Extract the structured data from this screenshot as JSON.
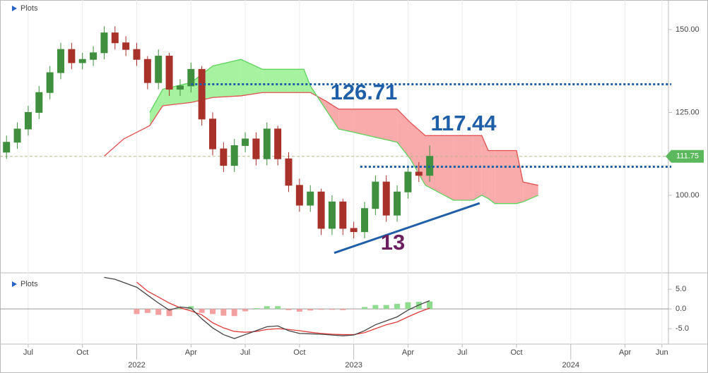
{
  "chart_data": [
    {
      "type": "candlestick",
      "label": "Plots",
      "xlim": [
        2021.37,
        2024.45
      ],
      "xticks": [
        {
          "value": 2021.5,
          "label": "Jul"
        },
        {
          "value": 2021.75,
          "label": "Oct"
        },
        {
          "value": 2022.25,
          "label": "Apr"
        },
        {
          "value": 2022.5,
          "label": "Jul"
        },
        {
          "value": 2022.75,
          "label": "Oct"
        },
        {
          "value": 2023.25,
          "label": "Apr"
        },
        {
          "value": 2023.5,
          "label": "Jul"
        },
        {
          "value": 2023.75,
          "label": "Oct"
        },
        {
          "value": 2024.25,
          "label": "Apr"
        },
        {
          "value": 2024.42,
          "label": "Jun"
        }
      ],
      "year_ticks": [
        2022,
        2023,
        2024
      ],
      "ylim": [
        77,
        158.5
      ],
      "yticks": [
        {
          "value": 100,
          "label": "100.00"
        },
        {
          "value": 125,
          "label": "125.00"
        },
        {
          "value": 150,
          "label": "150.00"
        }
      ],
      "up_color": "#3f8f3f",
      "down_color": "#a8322a",
      "x": [
        2021.4,
        2021.45,
        2021.5,
        2021.55,
        2021.6,
        2021.65,
        2021.7,
        2021.75,
        2021.8,
        2021.85,
        2021.9,
        2021.95,
        2022.0,
        2022.05,
        2022.1,
        2022.15,
        2022.2,
        2022.25,
        2022.3,
        2022.35,
        2022.4,
        2022.45,
        2022.5,
        2022.55,
        2022.6,
        2022.65,
        2022.7,
        2022.75,
        2022.8,
        2022.85,
        2022.9,
        2022.95,
        2023.0,
        2023.05,
        2023.1,
        2023.15,
        2023.2,
        2023.25,
        2023.3,
        2023.35
      ],
      "open": [
        113,
        116,
        120,
        125,
        131,
        137,
        144,
        140,
        141,
        143,
        149,
        146,
        144,
        141,
        134,
        142,
        132,
        133,
        138,
        123,
        114,
        109,
        115,
        117,
        111,
        120,
        111,
        103,
        97,
        101,
        90,
        98,
        90,
        89,
        96,
        104,
        94,
        101,
        107,
        106
      ],
      "high": [
        118,
        122,
        127,
        133,
        139,
        146,
        146,
        143,
        145,
        151,
        151,
        148,
        146,
        142,
        144,
        143,
        135,
        140,
        139,
        125,
        116,
        117,
        119,
        119,
        122,
        121,
        113,
        105,
        103,
        102,
        100,
        99,
        92,
        98,
        106,
        106,
        103,
        109,
        110,
        115
      ],
      "low": [
        111,
        114,
        118,
        123,
        129,
        135,
        138,
        138,
        139,
        141,
        144,
        142,
        139,
        132,
        132,
        130,
        130,
        131,
        121,
        112,
        107,
        107,
        113,
        109,
        109,
        109,
        101,
        95,
        95,
        88,
        88,
        88,
        87,
        87,
        94,
        92,
        92,
        99,
        104,
        104
      ],
      "close": [
        116,
        120,
        125,
        131,
        137,
        144,
        140,
        141,
        143,
        149,
        146,
        144,
        141,
        134,
        142,
        132,
        133,
        138,
        123,
        114,
        109,
        115,
        117,
        111,
        120,
        111,
        103,
        97,
        101,
        90,
        98,
        90,
        89,
        96,
        104,
        94,
        101,
        107,
        106,
        111.75
      ],
      "last_price_color": "#5cb85c",
      "ichimoku": {
        "x": [
          2021.85,
          2021.94,
          2022.06,
          2022.12,
          2022.25,
          2022.35,
          2022.48,
          2022.58,
          2022.77,
          2022.8,
          2022.87,
          2022.93,
          2023.0,
          2023.2,
          2023.26,
          2023.33,
          2023.46,
          2023.55,
          2023.59,
          2023.62,
          2023.65,
          2023.75,
          2023.78,
          2023.85
        ],
        "span_a": [
          null,
          null,
          125,
          132,
          134,
          139,
          141,
          138,
          138,
          133,
          126,
          120,
          119,
          116,
          111,
          103,
          98.5,
          98.5,
          100,
          99,
          97.5,
          97.5,
          98,
          100
        ],
        "span_b": [
          111.8,
          117,
          121,
          127,
          128,
          129.5,
          130,
          131,
          131,
          131,
          128.5,
          126,
          126,
          126,
          122,
          118,
          118,
          118,
          118,
          113.5,
          113.5,
          113.5,
          104,
          103
        ],
        "a_color": "#5fd35f",
        "b_color": "#e25050",
        "up_fill": "#a6f2a0",
        "down_fill": "#f9aaaa"
      },
      "levels": [
        {
          "value": 133.5,
          "start": 2022.25
        },
        {
          "value": 108.6,
          "start": 2023.03
        }
      ],
      "level_color": "#1f5fa8",
      "trendline": {
        "x": [
          2022.91,
          2023.58
        ],
        "y": [
          82.6,
          97.6
        ],
        "color": "#1f5fa8"
      },
      "annotations": [
        "126.71",
        "117.44",
        "13"
      ]
    },
    {
      "type": "macd",
      "label": "Plots",
      "ylim": [
        -8.9,
        8.6
      ],
      "yticks": [
        {
          "value": 5,
          "label": "5.0"
        },
        {
          "value": 0,
          "label": "0.0"
        },
        {
          "value": -5,
          "label": "-5.0"
        }
      ],
      "macd": [
        null,
        null,
        null,
        null,
        null,
        null,
        null,
        null,
        null,
        8.0,
        7.5,
        6.5,
        5.5,
        3.5,
        1.5,
        -0.3,
        0.5,
        0.2,
        -2.5,
        -4.8,
        -6.5,
        -7.5,
        -6.5,
        -5.5,
        -4.5,
        -4.3,
        -5.5,
        -6.2,
        -6.3,
        -6.4,
        -6.6,
        -6.8,
        -6.6,
        -5.5,
        -4.0,
        -3.0,
        -2.0,
        -0.3,
        1.0,
        2.1
      ],
      "signal": [
        null,
        null,
        null,
        null,
        null,
        null,
        null,
        null,
        null,
        null,
        null,
        null,
        6.8,
        4.5,
        3.0,
        1.5,
        0.3,
        -0.5,
        -1.5,
        -3.5,
        -4.8,
        -5.7,
        -5.9,
        -5.7,
        -5.2,
        -5.0,
        -5.2,
        -5.5,
        -5.9,
        -6.2,
        -6.4,
        -6.5,
        -6.5,
        -6.0,
        -5.0,
        -4.0,
        -3.3,
        -2.0,
        -0.8,
        0.2
      ],
      "histogram": [
        null,
        null,
        null,
        null,
        null,
        null,
        null,
        null,
        null,
        null,
        null,
        null,
        -1.3,
        -1.0,
        -1.5,
        -1.8,
        0.2,
        0.7,
        -1.0,
        -1.3,
        -1.7,
        -1.8,
        -0.6,
        0.2,
        0.7,
        0.7,
        -0.3,
        -0.7,
        -0.4,
        -0.2,
        -0.2,
        -0.3,
        -0.1,
        0.5,
        1.0,
        1.0,
        1.3,
        1.7,
        1.8,
        1.9
      ],
      "macd_color": "#444444",
      "signal_color": "#e03b3b",
      "pos_color": "#8fdc8f",
      "neg_color": "#f2a0a0"
    }
  ]
}
